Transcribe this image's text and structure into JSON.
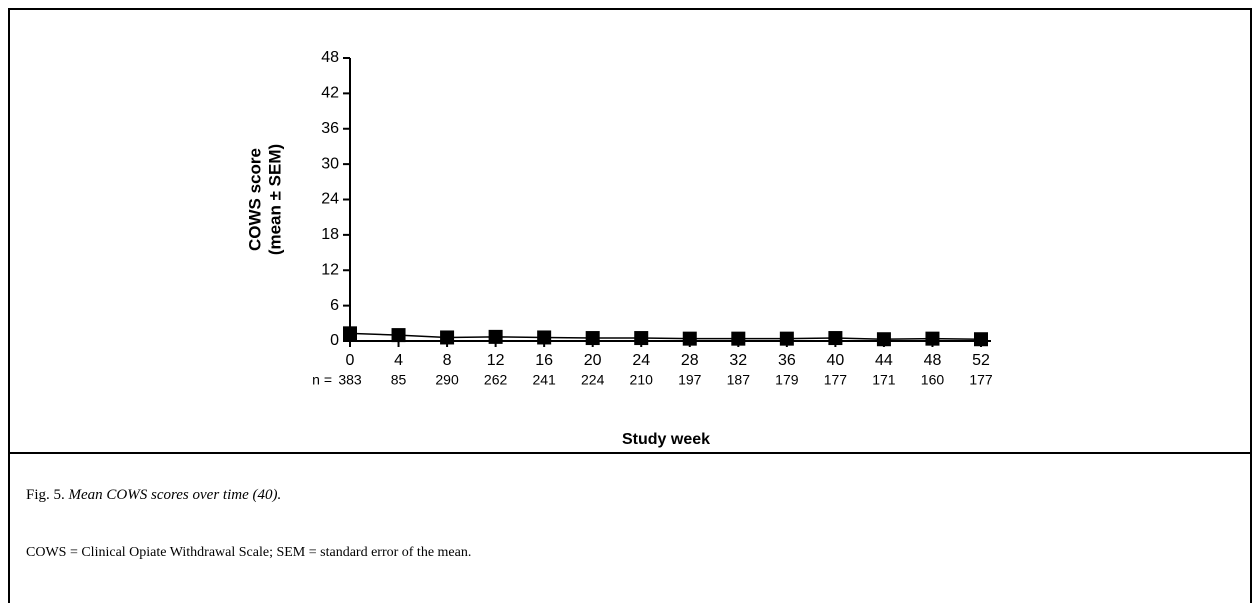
{
  "chart_data": {
    "type": "line",
    "xlabel": "Study week",
    "ylabel": [
      "COWS score",
      "(mean ± SEM)"
    ],
    "x": [
      0,
      4,
      8,
      12,
      16,
      20,
      24,
      28,
      32,
      36,
      40,
      44,
      48,
      52
    ],
    "series": [
      {
        "color": "#000000",
        "values": [
          1.3,
          1.0,
          0.6,
          0.7,
          0.6,
          0.5,
          0.5,
          0.4,
          0.4,
          0.4,
          0.5,
          0.3,
          0.4,
          0.3
        ],
        "errors": [
          0.3,
          0.3,
          0.2,
          0.2,
          0.2,
          0.2,
          0.2,
          0.2,
          0.2,
          0.2,
          0.2,
          0.2,
          0.2,
          0.2
        ]
      }
    ],
    "n_label": "n =",
    "n": [
      383,
      85,
      290,
      262,
      241,
      224,
      210,
      197,
      187,
      179,
      177,
      171,
      160,
      177
    ],
    "xlim": [
      0,
      52
    ],
    "xticks": [
      0,
      4,
      8,
      12,
      16,
      20,
      24,
      28,
      32,
      36,
      40,
      44,
      48,
      52
    ],
    "ylim": [
      0,
      48
    ],
    "yticks": [
      0,
      6,
      12,
      18,
      24,
      30,
      36,
      42,
      48
    ]
  },
  "caption": {
    "label": "Fig. 5.",
    "title": "Mean COWS scores over time (40).",
    "note": "COWS = Clinical Opiate Withdrawal Scale; SEM = standard error of the mean."
  }
}
